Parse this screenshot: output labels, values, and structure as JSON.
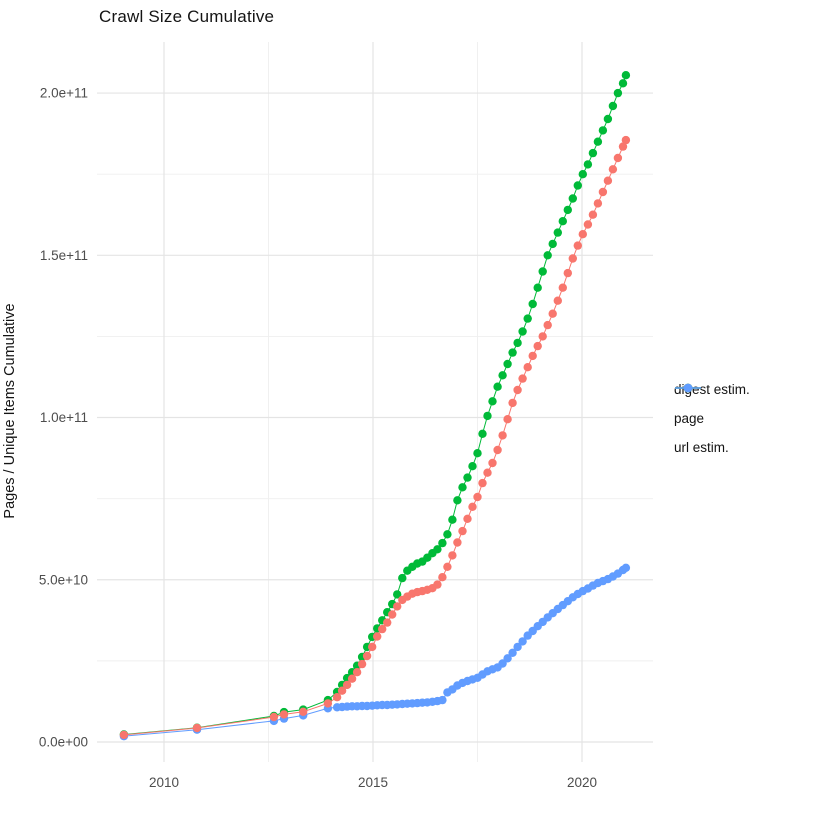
{
  "chart_data": {
    "type": "scatter",
    "title": "Crawl Size Cumulative",
    "xlabel": "",
    "ylabel": "Pages / Unique Items Cumulative",
    "x_axis": {
      "tick_labels": [
        "2010",
        "2015",
        "2020"
      ],
      "tick_values": [
        2010,
        2015,
        2020
      ],
      "minor_tick_values": [
        2012.5,
        2017.5
      ],
      "range_years": [
        2008.4,
        2021.7
      ]
    },
    "y_axis": {
      "tick_labels": [
        "0.0e+00",
        "5.0e+10",
        "1.0e+11",
        "1.5e+11",
        "2.0e+11"
      ],
      "tick_values_billions": [
        0,
        50,
        100,
        150,
        200
      ],
      "minor_tick_values_billions": [
        25,
        75,
        125,
        175
      ],
      "range_billions": [
        -6,
        215.7
      ],
      "grid": true
    },
    "legend": {
      "position": "right",
      "entries": [
        "digest estim.",
        "page",
        "url estim."
      ]
    },
    "units": "cumulative count; values_billions are in units of 1e9 items",
    "x_years": [
      2009.04,
      2010.79,
      2012.63,
      2012.87,
      2013.33,
      2013.92,
      2014.14,
      2014.26,
      2014.38,
      2014.5,
      2014.62,
      2014.74,
      2014.86,
      2014.98,
      2015.1,
      2015.22,
      2015.34,
      2015.46,
      2015.58,
      2015.7,
      2015.82,
      2015.94,
      2016.06,
      2016.18,
      2016.3,
      2016.42,
      2016.54,
      2016.66,
      2016.78,
      2016.9,
      2017.02,
      2017.14,
      2017.26,
      2017.38,
      2017.5,
      2017.62,
      2017.74,
      2017.86,
      2017.98,
      2018.1,
      2018.22,
      2018.34,
      2018.46,
      2018.58,
      2018.7,
      2018.82,
      2018.94,
      2019.06,
      2019.18,
      2019.3,
      2019.42,
      2019.54,
      2019.66,
      2019.78,
      2019.9,
      2020.02,
      2020.14,
      2020.26,
      2020.38,
      2020.5,
      2020.62,
      2020.74,
      2020.86,
      2020.98,
      2021.05
    ],
    "series": [
      {
        "name": "digest estim.",
        "color": "#F8766D",
        "values_billions": [
          2.2,
          4.3,
          7.7,
          8.5,
          9.3,
          11.9,
          13.8,
          15.8,
          17.6,
          19.5,
          21.5,
          24.0,
          26.5,
          29.3,
          32.5,
          34.8,
          36.8,
          39.3,
          41.8,
          43.8,
          44.8,
          45.7,
          46.2,
          46.5,
          46.9,
          47.4,
          48.5,
          50.8,
          54.0,
          57.5,
          61.5,
          65.0,
          68.8,
          72.5,
          75.5,
          79.8,
          83.0,
          86.0,
          90.0,
          94.5,
          99.5,
          104.5,
          108.5,
          112.0,
          115.5,
          119.0,
          122.0,
          125.0,
          128.5,
          132.0,
          136.0,
          140.0,
          144.5,
          149.0,
          153.0,
          156.5,
          159.5,
          162.5,
          166.0,
          169.5,
          173.0,
          176.5,
          180.0,
          183.5,
          185.5
        ]
      },
      {
        "name": "page",
        "color": "#00BA38",
        "values_billions": [
          2.3,
          4.4,
          8.0,
          9.2,
          10.0,
          12.9,
          15.4,
          17.6,
          19.7,
          21.5,
          23.5,
          26.2,
          29.3,
          32.4,
          35.0,
          37.5,
          40.0,
          42.5,
          45.5,
          50.5,
          52.8,
          54.0,
          55.0,
          55.6,
          56.8,
          58.2,
          59.4,
          61.3,
          64.0,
          68.5,
          74.5,
          78.5,
          81.5,
          85.0,
          89.0,
          95.0,
          100.5,
          105.0,
          109.5,
          113.0,
          116.5,
          120.0,
          123.0,
          126.5,
          130.5,
          135.0,
          140.0,
          145.0,
          150.0,
          153.5,
          157.0,
          160.5,
          164.0,
          167.5,
          171.5,
          175.0,
          178.0,
          181.5,
          185.0,
          188.5,
          192.0,
          196.0,
          200.0,
          203.0,
          205.5
        ]
      },
      {
        "name": "url estim.",
        "color": "#619CFF",
        "values_billions": [
          1.8,
          3.8,
          6.5,
          7.2,
          8.2,
          10.4,
          10.7,
          10.8,
          10.9,
          11.0,
          11.0,
          11.1,
          11.1,
          11.2,
          11.3,
          11.4,
          11.4,
          11.5,
          11.6,
          11.7,
          11.8,
          11.9,
          12.0,
          12.1,
          12.2,
          12.4,
          12.6,
          12.9,
          15.3,
          16.2,
          17.4,
          18.2,
          18.8,
          19.3,
          19.8,
          20.8,
          21.8,
          22.4,
          23.0,
          24.2,
          25.8,
          27.5,
          29.3,
          31.0,
          32.8,
          34.2,
          35.7,
          37.0,
          38.4,
          39.7,
          41.0,
          42.2,
          43.4,
          44.6,
          45.6,
          46.5,
          47.3,
          48.2,
          49.0,
          49.6,
          50.2,
          51.0,
          51.9,
          53.0,
          53.7
        ]
      }
    ]
  }
}
